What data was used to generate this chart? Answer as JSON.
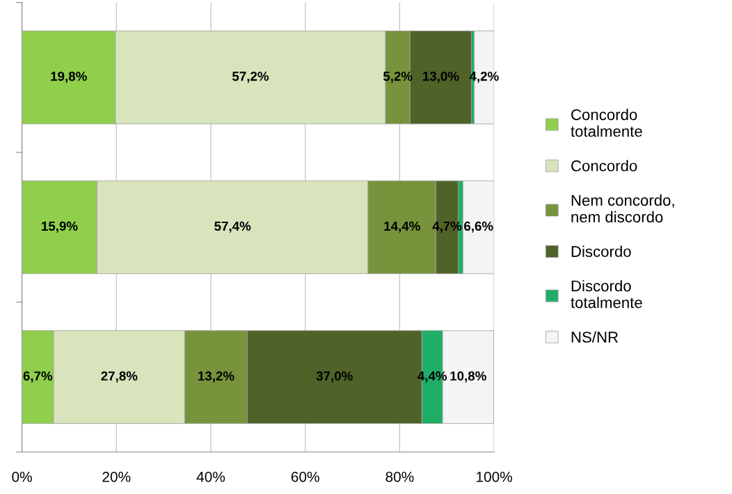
{
  "chart_data": {
    "type": "bar",
    "orientation": "horizontal",
    "stacked": true,
    "categories": [
      null,
      null,
      null
    ],
    "series": [
      {
        "name": "Concordo\ntotalmente",
        "color": "#8fcf4c",
        "values": [
          19.8,
          15.9,
          6.7
        ],
        "value_labels": [
          "19,8%",
          "15,9%",
          "6,7%"
        ]
      },
      {
        "name": "Concordo",
        "color": "#d8e4bc",
        "values": [
          57.2,
          57.4,
          27.8
        ],
        "value_labels": [
          "57,2%",
          "57,4%",
          "27,8%"
        ]
      },
      {
        "name": "Nem concordo,\nnem discordo",
        "color": "#77933c",
        "values": [
          5.2,
          14.4,
          13.2
        ],
        "value_labels": [
          "5,2%",
          "14,4%",
          "13,2%"
        ]
      },
      {
        "name": "Discordo",
        "color": "#4f6228",
        "values": [
          13.0,
          4.7,
          37.0
        ],
        "value_labels": [
          "13,0%",
          "4,7%",
          "37,0%"
        ]
      },
      {
        "name": "Discordo\ntotalmente",
        "color": "#1fae68",
        "values": [
          0.6,
          1.0,
          4.4
        ],
        "value_labels": [
          null,
          null,
          "4,4%"
        ]
      },
      {
        "name": "NS/NR",
        "color": "#f4f4f4",
        "values": [
          4.2,
          6.6,
          10.8
        ],
        "value_labels": [
          "4,2%",
          "6,6%",
          "10,8%"
        ]
      }
    ],
    "xlim": [
      0,
      100
    ],
    "xticks": [
      {
        "value": 0,
        "label": "0%"
      },
      {
        "value": 20,
        "label": "20%"
      },
      {
        "value": 40,
        "label": "40%"
      },
      {
        "value": 60,
        "label": "60%"
      },
      {
        "value": 80,
        "label": "80%"
      },
      {
        "value": 100,
        "label": "100%"
      }
    ],
    "grid": "x",
    "legend": "right",
    "tick_labels": "x"
  }
}
